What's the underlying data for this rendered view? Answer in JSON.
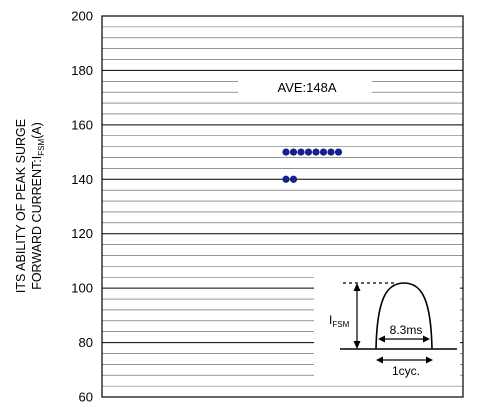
{
  "chart_data": {
    "type": "scatter",
    "title": "",
    "ylabel_line1": "ITS ABILITY OF PEAK SURGE",
    "ylabel_line2_main": "FORWARD CURRENT:I",
    "ylabel_line2_sub": "FSM",
    "ylabel_line2_unit": "(A)",
    "xlabel": "",
    "ylim": [
      60,
      200
    ],
    "y_ticks": [
      "60",
      "80",
      "100",
      "120",
      "140",
      "160",
      "180",
      "200"
    ],
    "minor_grid_step": 4,
    "grid": true,
    "series": [
      {
        "values": [
          150,
          150,
          150,
          150,
          150,
          150,
          150,
          150,
          140,
          140
        ],
        "color": "#1a1f8c"
      }
    ],
    "annotation_ave": "AVE:148A",
    "inset": {
      "current_label_main": "I",
      "current_label_sub": "FSM",
      "pulse_width_label": "8.3ms",
      "cycle_label": "1cyc."
    }
  }
}
